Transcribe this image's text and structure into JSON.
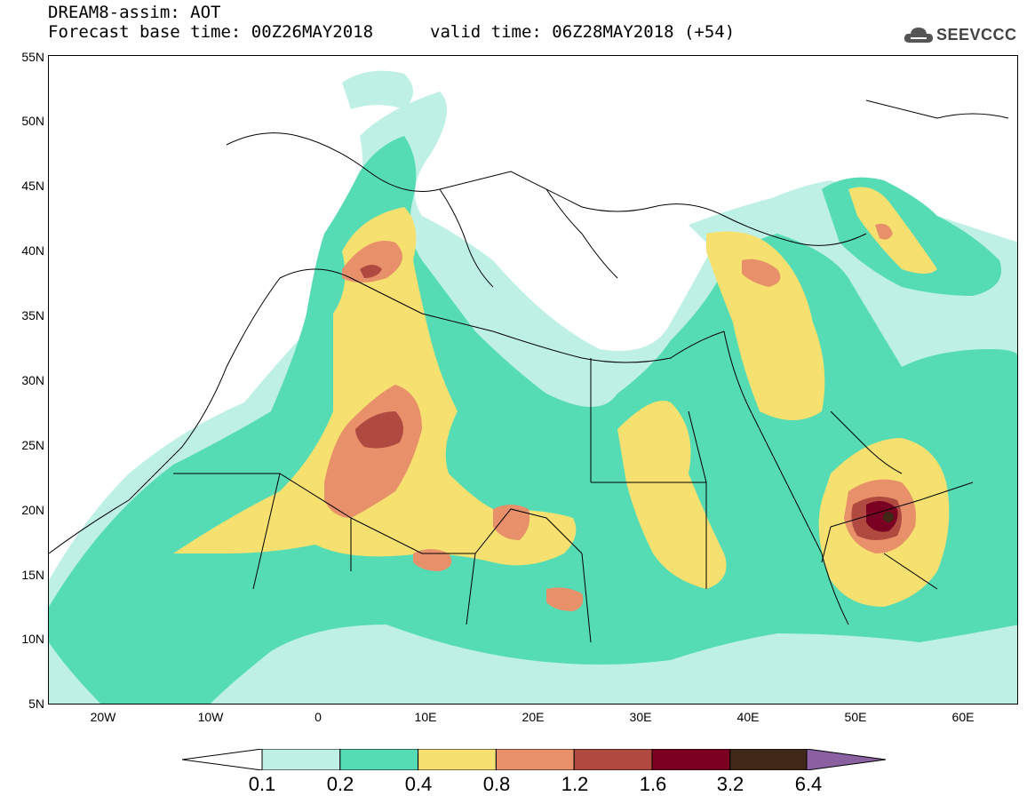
{
  "header": {
    "title_line1": "DREAM8-assim: AOT",
    "title_line2": "Forecast base time: 00Z26MAY2018",
    "valid_time": "valid time: 06Z28MAY2018 (+54)",
    "logo_text": "SEEVCCC"
  },
  "map": {
    "variable": "AOT",
    "lat_labels": [
      "55N",
      "50N",
      "45N",
      "40N",
      "35N",
      "30N",
      "25N",
      "20N",
      "15N",
      "10N",
      "5N"
    ],
    "lon_labels": [
      "20W",
      "10W",
      "0",
      "10E",
      "20E",
      "30E",
      "40E",
      "50E",
      "60E"
    ]
  },
  "colorbar": {
    "colors": [
      "#bff0e6",
      "#55dcb4",
      "#f5e070",
      "#e8906a",
      "#b04a40",
      "#7a0022",
      "#402818",
      "#8a60a0"
    ],
    "labels": [
      "0.1",
      "0.2",
      "0.4",
      "0.8",
      "1.2",
      "1.6",
      "3.2",
      "6.4"
    ]
  }
}
